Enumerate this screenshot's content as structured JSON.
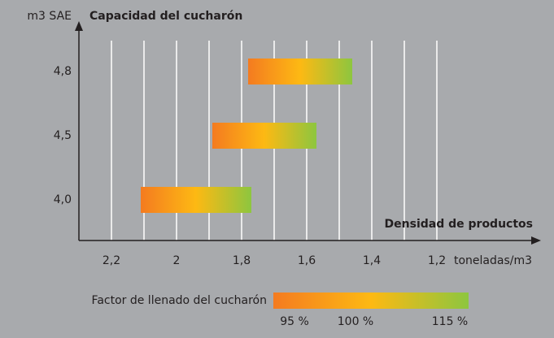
{
  "chart_data": {
    "type": "bar",
    "orientation": "horizontal",
    "title": "Capacidad del cucharón",
    "y_label": "m3 SAE",
    "x_label": "Densidad de productos",
    "x_unit": "toneladas/m3",
    "categories": [
      "4,0",
      "4,5",
      "4,8"
    ],
    "values": [
      [
        2.11,
        1.77
      ],
      [
        1.89,
        1.57
      ],
      [
        1.78,
        1.46
      ]
    ],
    "colors": [
      "#f47b20",
      "#fdb913",
      "#8dc63f"
    ],
    "xlim": [
      2.3,
      0.9
    ],
    "xticks": [
      {
        "value": 2.2,
        "label": "2,2"
      },
      2,
      {
        "value": 1.8,
        "label": "1,8"
      },
      {
        "value": 1.6,
        "label": "1,6"
      },
      {
        "value": 1.4,
        "label": "1,4"
      },
      {
        "value": 1.2,
        "label": "1,2"
      }
    ],
    "xminor": [
      2.1,
      1.9,
      1.7,
      1.5,
      1.3
    ],
    "grid": true,
    "legend": {
      "title": "Factor de llenado del cucharón",
      "labels": [
        "95 %",
        "100 %",
        "115 %"
      ]
    }
  }
}
